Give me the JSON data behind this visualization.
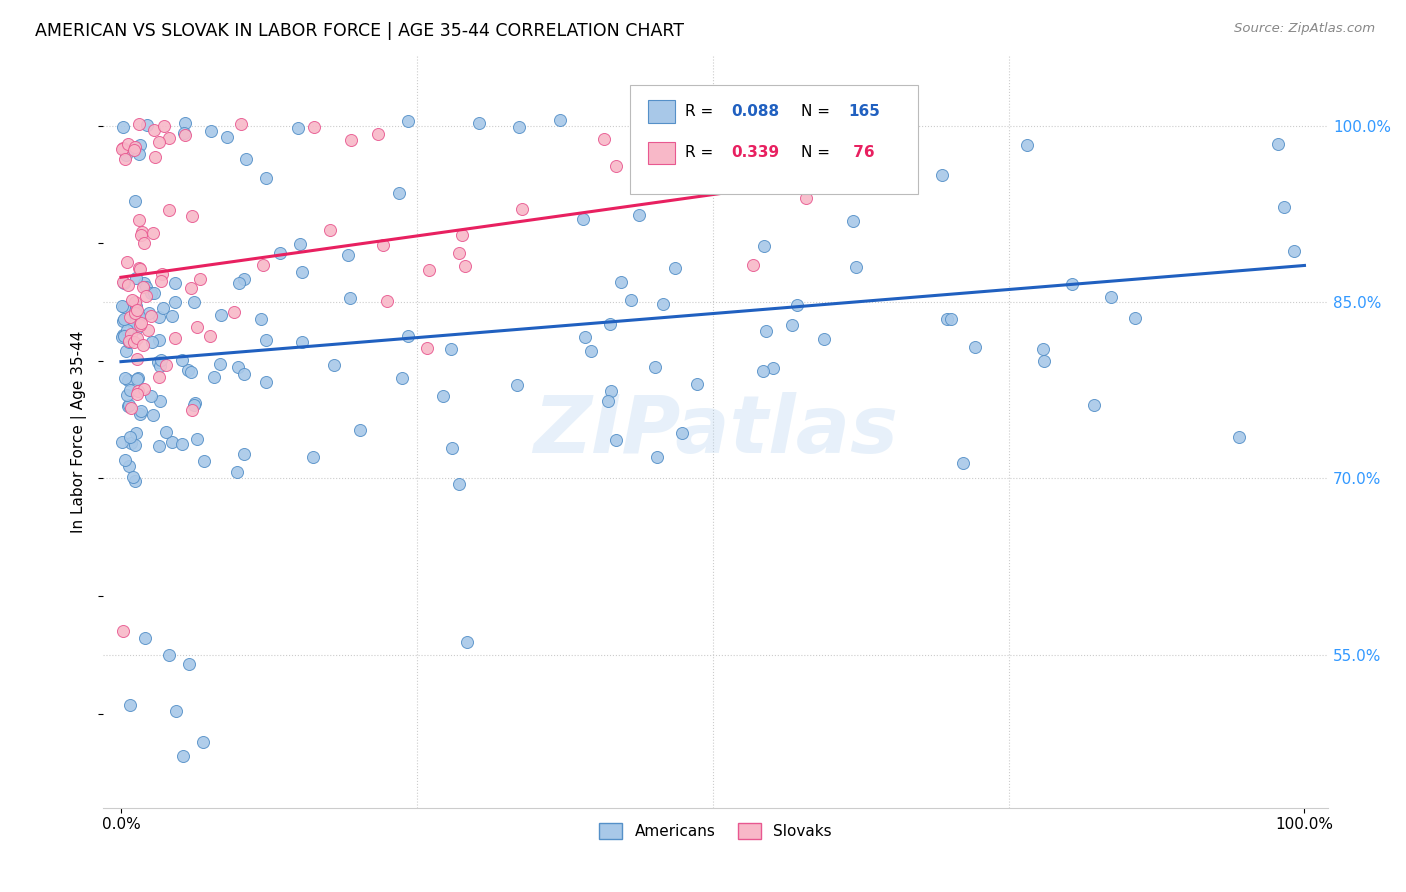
{
  "title": "AMERICAN VS SLOVAK IN LABOR FORCE | AGE 35-44 CORRELATION CHART",
  "source": "Source: ZipAtlas.com",
  "ylabel": "In Labor Force | Age 35-44",
  "american_color": "#a8c8e8",
  "slovak_color": "#f8b8c8",
  "american_edge": "#5590c8",
  "slovak_edge": "#e85890",
  "trend_american": "#2060c0",
  "trend_slovak": "#e82060",
  "watermark": "ZIPatlas",
  "am_seed": 42,
  "sk_seed": 7,
  "ylim_low": 0.42,
  "ylim_high": 1.06,
  "xlim_low": -0.015,
  "xlim_high": 1.02,
  "yticks": [
    0.55,
    0.7,
    0.85,
    1.0
  ],
  "xticks": [
    0.0,
    1.0
  ],
  "grid_xticks": [
    0.25,
    0.5,
    0.75
  ],
  "grid_yticks": [
    0.55,
    0.7,
    0.85,
    1.0
  ],
  "legend_r_am": "0.088",
  "legend_n_am": "165",
  "legend_r_sk": "0.339",
  "legend_n_sk": " 76"
}
